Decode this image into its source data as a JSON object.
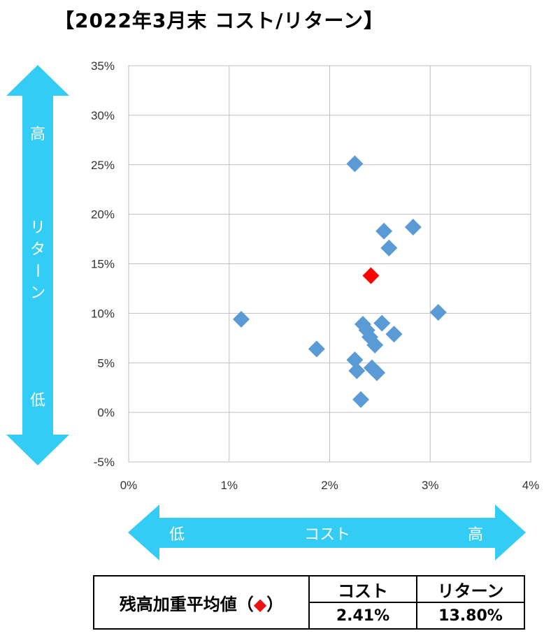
{
  "title": "【2022年3月末  コスト/リターン】",
  "chart_data": {
    "type": "scatter",
    "x_axis": {
      "range": [
        0,
        4
      ],
      "ticks": [
        0,
        1,
        2,
        3,
        4
      ],
      "tick_labels": [
        "0%",
        "1%",
        "2%",
        "3%",
        "4%"
      ],
      "unit": "%"
    },
    "y_axis": {
      "range": [
        -5,
        35
      ],
      "ticks": [
        -5,
        0,
        5,
        10,
        15,
        20,
        25,
        30,
        35
      ],
      "tick_labels": [
        "-5%",
        "0%",
        "5%",
        "10%",
        "15%",
        "20%",
        "25%",
        "30%",
        "35%"
      ],
      "unit": "%"
    },
    "grid": true,
    "series": [
      {
        "color": "#5b9bd5",
        "marker": "diamond",
        "points": [
          {
            "x": 1.12,
            "y": 9.4
          },
          {
            "x": 1.87,
            "y": 6.4
          },
          {
            "x": 2.25,
            "y": 25.1
          },
          {
            "x": 2.25,
            "y": 5.3
          },
          {
            "x": 2.27,
            "y": 4.2
          },
          {
            "x": 2.31,
            "y": 1.3
          },
          {
            "x": 2.33,
            "y": 8.9
          },
          {
            "x": 2.37,
            "y": 8.3
          },
          {
            "x": 2.4,
            "y": 7.6
          },
          {
            "x": 2.42,
            "y": 4.5
          },
          {
            "x": 2.45,
            "y": 6.8
          },
          {
            "x": 2.47,
            "y": 4.0
          },
          {
            "x": 2.52,
            "y": 9.0
          },
          {
            "x": 2.54,
            "y": 18.3
          },
          {
            "x": 2.59,
            "y": 16.6
          },
          {
            "x": 2.64,
            "y": 7.9
          },
          {
            "x": 2.83,
            "y": 18.7
          },
          {
            "x": 3.08,
            "y": 10.1
          }
        ]
      },
      {
        "color": "#ff0000",
        "marker": "diamond",
        "points": [
          {
            "x": 2.41,
            "y": 13.8
          }
        ]
      }
    ]
  },
  "y_arrow": {
    "top_label": "高",
    "middle_label": "リターン",
    "bottom_label": "低",
    "color": "#33ccf5"
  },
  "x_arrow": {
    "left_label": "低",
    "middle_label": "コスト",
    "right_label": "高",
    "color": "#33ccf5"
  },
  "summary": {
    "label": "残高加重平均値（",
    "label_symbol": "◆",
    "label_close": "）",
    "col_cost": "コスト",
    "col_return": "リターン",
    "cost_value": "2.41%",
    "return_value": "13.80%"
  }
}
